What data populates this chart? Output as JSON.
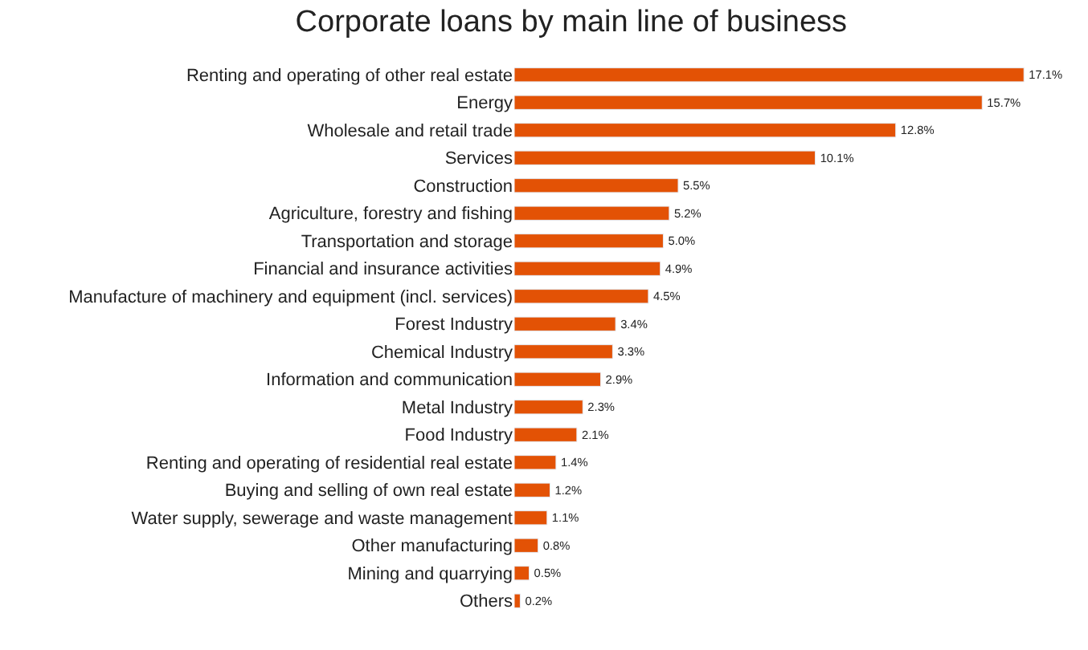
{
  "chart_data": {
    "type": "bar",
    "orientation": "horizontal",
    "title": "Corporate loans by main line of business",
    "categories": [
      "Renting and operating of other real estate",
      "Energy",
      "Wholesale and retail trade",
      "Services",
      "Construction",
      "Agriculture, forestry and fishing",
      "Transportation and storage",
      "Financial and insurance activities",
      "Manufacture of machinery and equipment (incl. services)",
      "Forest Industry",
      "Chemical Industry",
      "Information and communication",
      "Metal Industry",
      "Food Industry",
      "Renting and operating of residential real estate",
      "Buying and selling of own real estate",
      "Water supply, sewerage and waste management",
      "Other manufacturing",
      "Mining and quarrying",
      "Others"
    ],
    "values": [
      17.1,
      15.7,
      12.8,
      10.1,
      5.5,
      5.2,
      5.0,
      4.9,
      4.5,
      3.4,
      3.3,
      2.9,
      2.3,
      2.1,
      1.4,
      1.2,
      1.1,
      0.8,
      0.5,
      0.2
    ],
    "value_labels": [
      "17.1%",
      "15.7%",
      "12.8%",
      "10.1%",
      "5.5%",
      "5.2%",
      "5.0%",
      "4.9%",
      "4.5%",
      "3.4%",
      "3.3%",
      "2.9%",
      "2.3%",
      "2.1%",
      "1.4%",
      "1.2%",
      "1.1%",
      "0.8%",
      "0.5%",
      "0.2%"
    ],
    "color": "#e35205"
  }
}
